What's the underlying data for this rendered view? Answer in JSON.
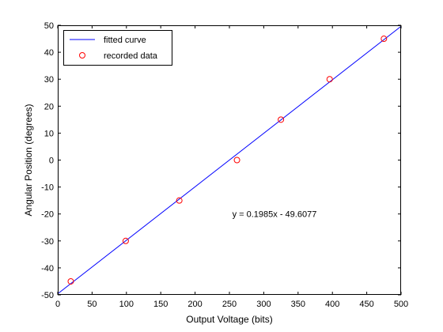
{
  "chart_data": {
    "type": "scatter",
    "title": "",
    "xlabel": "Output Voltage (bits)",
    "ylabel": "Angular Position (degrees)",
    "xlim": [
      0,
      500
    ],
    "ylim": [
      -50,
      50
    ],
    "xticks": [
      0,
      50,
      100,
      150,
      200,
      250,
      300,
      350,
      400,
      450,
      500
    ],
    "yticks": [
      -50,
      -40,
      -30,
      -20,
      -10,
      0,
      10,
      20,
      30,
      40,
      50
    ],
    "grid": false,
    "legend_position": "top-left",
    "series": [
      {
        "name": "fitted curve",
        "kind": "line",
        "color": "#0000ff",
        "slope": 0.1985,
        "intercept": -49.6077,
        "x": [
          0,
          500
        ],
        "y": [
          -49.6077,
          49.6423
        ]
      },
      {
        "name": "recorded data",
        "kind": "marker",
        "marker": "circle",
        "color": "#ff0000",
        "x": [
          19,
          99,
          177,
          261,
          325,
          396,
          475
        ],
        "y": [
          -45,
          -30,
          -15,
          0,
          15,
          30,
          45
        ]
      }
    ],
    "annotations": [
      {
        "text": "y = 0.1985x - 49.6077",
        "x": 200,
        "y": -20
      }
    ]
  }
}
